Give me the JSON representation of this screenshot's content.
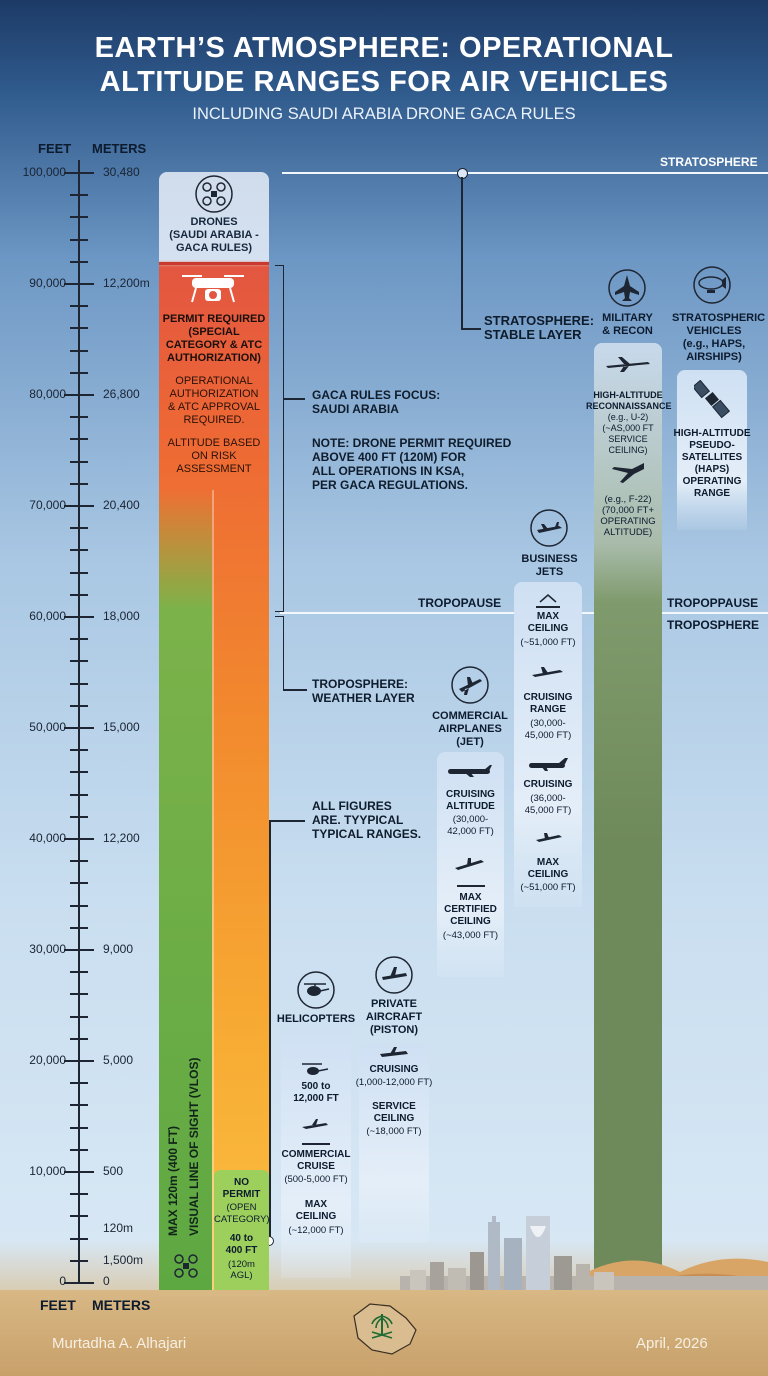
{
  "header": {
    "title_line1": "EARTH’S ATMOSPHERE: OPERATIONAL",
    "title_line2": "ALTITUDE RANGES FOR AIR VEHICLES",
    "subtitle": "INCLUDING SAUDI ARABIA DRONE GACA RULES"
  },
  "scale": {
    "feet_header": "FEET",
    "meters_header": "METERS",
    "feet_labels": [
      "100,000",
      "90,000",
      "80,000",
      "70,000",
      "60,000",
      "50,000",
      "40,000",
      "30,000",
      "20,000",
      "10,000",
      "0"
    ],
    "meter_labels": [
      "30,480",
      "12,200m",
      "26,800",
      "20,400",
      "18,000",
      "15,000",
      "12,200",
      "9,000",
      "5,000",
      "500",
      "120m",
      "1,500m",
      "0"
    ],
    "feet_footer": "FEET",
    "meters_footer": "METERS"
  },
  "layers": {
    "stratosphere": "STRATOSPHERE",
    "stratosphere_note": "STRATOSPHERE:\nSTABLE LAYER",
    "tropopause_left": "TROPOPAUSE",
    "tropopause_right": "TROPOPPAUSE",
    "troposphere": "TROPOSPHERE",
    "troposphere_note": "TROPOSPHERE:\nWEATHER LAYER"
  },
  "drones": {
    "title": "DRONES\n(SAUDI ARABIA -\nGACA RULES)",
    "permit_title": "PERMIT REQUIRED\n(SPECIAL\nCATEGORY & ATC\nAUTHORIZATION)",
    "permit_desc": "OPERATIONAL\nAUTHORIZATION\n& ATC APPROVAL\nREQUIRED.",
    "risk": "ALTITUDE BASED\nON RISK\nASSESSMENT",
    "vlos": "MAX 120m (400 FT)",
    "vlos2": "VISUAL LINE OF SIGHT (VLOS)",
    "no_permit": "NO\nPERMIT",
    "open_cat": "(OPEN\nCATEGORY)",
    "range": "40 to\n400 FT",
    "range_m": "(120m\nAGL)"
  },
  "gaca_note": {
    "focus": "GACA RULES FOCUS:\nSAUDI ARABIA",
    "note": "NOTE: DRONE PERMIT REQUIRED\nABOVE 400 FT (120M) FOR\nALL OPERATIONS IN KSA,\nPER GACA REGULATIONS."
  },
  "figures_note": "ALL FIGURES\nARE. TYYPICAL\nTYPICAL RANGES.",
  "helicopters": {
    "title": "HELICOPTERS",
    "range": "500 to\n12,000 FT",
    "cruise": "COMMERCIAL\nCRUISE",
    "cruise_val": "(500-5,000 FT)",
    "max": "MAX\nCEILING",
    "max_val": "(~12,000 FT)"
  },
  "private": {
    "title": "PRIVATE\nAIRCRAFT\n(PISTON)",
    "cruising": "CRUISING",
    "cruising_val": "(1,000-12,000 FT)",
    "service": "SERVICE\nCEILING",
    "service_val": "(~18,000 FT)"
  },
  "commercial": {
    "title": "COMMERCIAL\nAIRPLANES\n(JET)",
    "cruising": "CRUISING\nALTITUDE",
    "cruising_val": "(30,000-\n42,000 FT)",
    "max": "MAX\nCERTIFIED\nCEILING",
    "max_val": "(~43,000 FT)"
  },
  "business": {
    "title": "BUSINESS\nJETS",
    "max": "MAX\nCEILING",
    "max_val": "(~51,000 FT)",
    "cruise_range": "CRUISING\nRANGE",
    "cruise_range_val": "(30,000-\n45,000 FT)",
    "cruising": "CRUISING",
    "cruising_val": "(36,000-\n45,000 FT)",
    "max2": "MAX\nCEILING",
    "max2_val": "(~51,000 FT)"
  },
  "military": {
    "title": "MILITARY\n& RECON",
    "recon": "HIGH-ALTITUDE\nRECONNAISSANCE",
    "recon_val": "(e.g., U-2)\n(~AS,000 FT\nSERVICE\nCEILING)",
    "f22": "(e.g., F-22)\n(70,000 FT+\nOPERATING\nALTITUDE)"
  },
  "strato_vehicles": {
    "title": "STRATOSPHERIC\nVEHICLES\n(e.g., HAPS,\nAIRSHIPS)",
    "haps": "HIGH-ALTITUDE\nPSEUDO-\nSATELLITES\n(HAPS)\nOPERATING\nRANGE"
  },
  "footer": {
    "author": "Murtadha A. Alhajari",
    "date": "April, 2026"
  },
  "colors": {
    "permit_red": "#e35640",
    "drone_orange": "#f28b2e",
    "vlos_green": "#5ea842",
    "no_permit_green": "#9dcf5c",
    "military_green": "#6f8a5a",
    "panel_blue": "#dde9f6"
  }
}
